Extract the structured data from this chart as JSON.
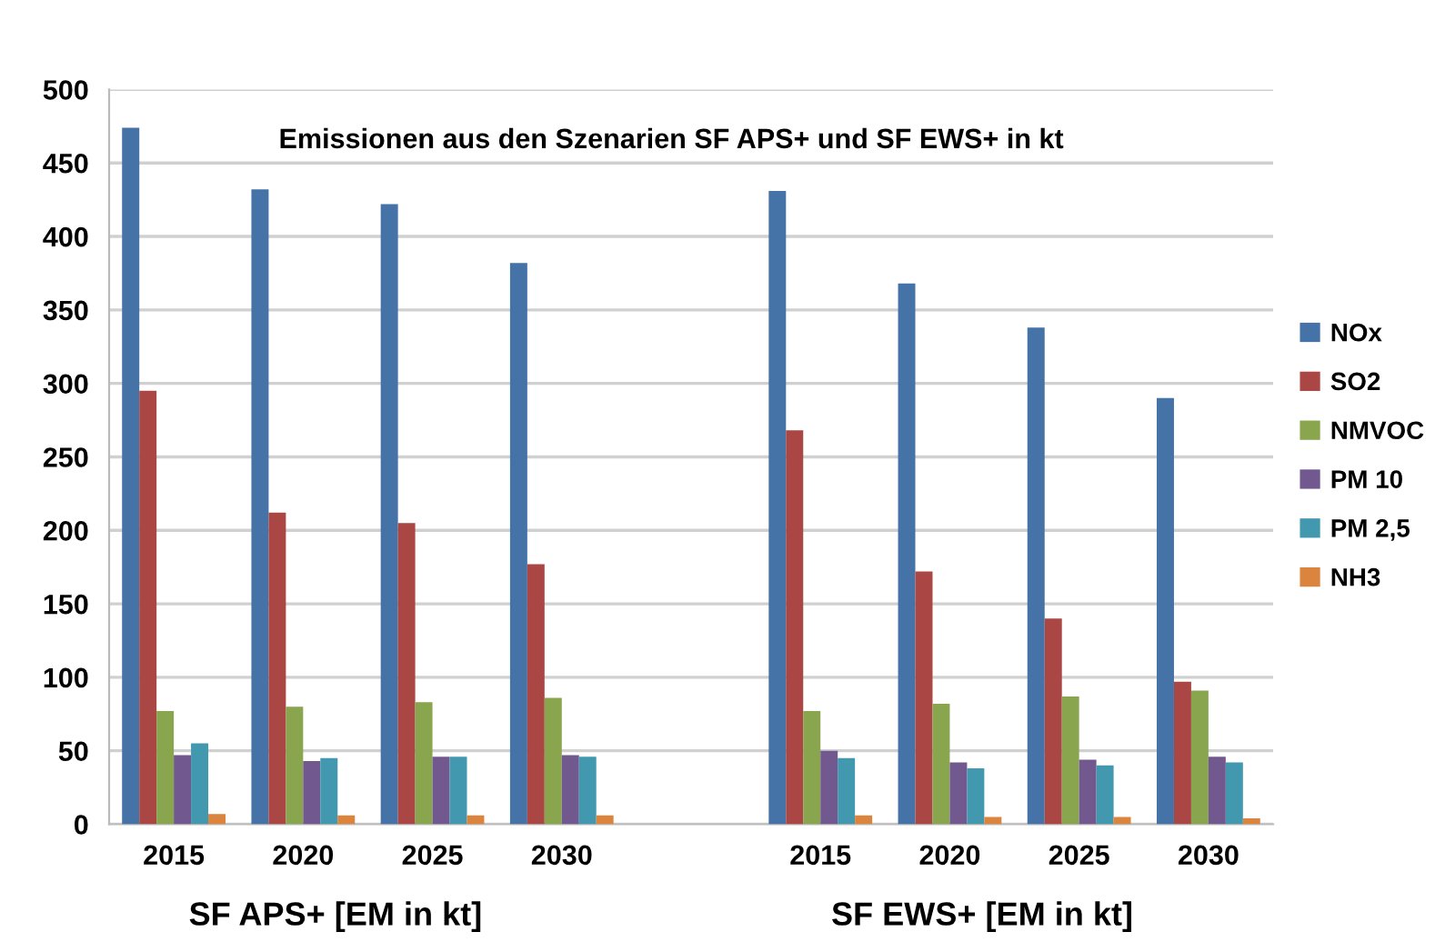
{
  "chart_data": {
    "type": "bar",
    "title": "Emissionen aus den Szenarien SF APS+ und SF EWS+ in kt",
    "categories": [
      "2015",
      "2020",
      "2025",
      "2030",
      null,
      "2015",
      "2020",
      "2025",
      "2030"
    ],
    "series": [
      {
        "name": "NOx",
        "color": "#4572a7",
        "values": [
          474,
          432,
          422,
          382,
          null,
          431,
          368,
          338,
          290
        ]
      },
      {
        "name": "SO2",
        "color": "#aa4643",
        "values": [
          295,
          212,
          205,
          177,
          null,
          268,
          172,
          140,
          97
        ]
      },
      {
        "name": "NMVOC",
        "color": "#89a54e",
        "values": [
          77,
          80,
          83,
          86,
          null,
          77,
          82,
          87,
          91
        ]
      },
      {
        "name": "PM 10",
        "color": "#71588f",
        "values": [
          47,
          43,
          46,
          47,
          null,
          50,
          42,
          44,
          46
        ]
      },
      {
        "name": "PM 2,5",
        "color": "#4198af",
        "values": [
          55,
          45,
          46,
          46,
          null,
          45,
          38,
          40,
          42
        ]
      },
      {
        "name": "NH3",
        "color": "#db843d",
        "values": [
          7,
          6,
          6,
          6,
          null,
          6,
          5,
          5,
          4
        ]
      }
    ],
    "annotations": [
      "SF APS+ [EM in kt]",
      "SF EWS+ [EM in kt]"
    ],
    "ylim": [
      0,
      500
    ],
    "yticks": [
      0,
      50,
      100,
      150,
      200,
      250,
      300,
      350,
      400,
      450,
      500
    ],
    "grid": "y",
    "legend": "right"
  }
}
